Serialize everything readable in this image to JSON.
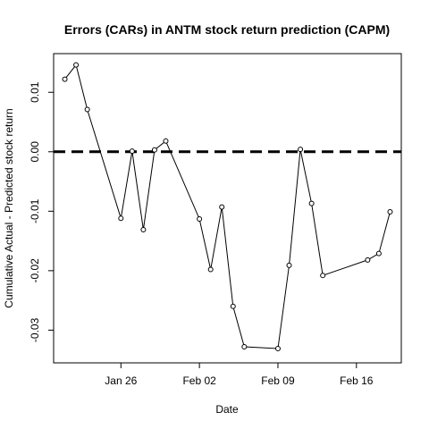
{
  "chart_data": {
    "type": "line",
    "title": "Errors (CARs) in ANTM stock return prediction (CAPM)",
    "xlabel": "Date",
    "ylabel": "Cumulative Actual - Predicted stock return",
    "x_ticks": [
      {
        "label": "Jan 26",
        "date": "2015-01-26"
      },
      {
        "label": "Feb 02",
        "date": "2015-02-02"
      },
      {
        "label": "Feb 09",
        "date": "2015-02-09"
      },
      {
        "label": "Feb 16",
        "date": "2015-02-16"
      }
    ],
    "y_ticks": [
      {
        "label": "-0.03",
        "value": -0.03
      },
      {
        "label": "-0.02",
        "value": -0.02
      },
      {
        "label": "-0.01",
        "value": -0.01
      },
      {
        "label": "0.00",
        "value": 0.0
      },
      {
        "label": "0.01",
        "value": 0.01
      }
    ],
    "xlim": [
      "2015-01-20",
      "2015-02-20"
    ],
    "ylim": [
      -0.0355,
      0.0165
    ],
    "reference_line": {
      "y": 0.0,
      "style": "dashed"
    },
    "grid": false,
    "series": [
      {
        "x": [
          "2015-01-21",
          "2015-01-22",
          "2015-01-23",
          "2015-01-26",
          "2015-01-27",
          "2015-01-28",
          "2015-01-29",
          "2015-01-30",
          "2015-02-02",
          "2015-02-03",
          "2015-02-04",
          "2015-02-05",
          "2015-02-06",
          "2015-02-09",
          "2015-02-10",
          "2015-02-11",
          "2015-02-12",
          "2015-02-13",
          "2015-02-17",
          "2015-02-18",
          "2015-02-19"
        ],
        "y": [
          0.0122,
          0.0146,
          0.0071,
          -0.0112,
          0.0001,
          -0.0131,
          0.0003,
          0.0018,
          -0.0113,
          -0.0198,
          -0.0093,
          -0.026,
          -0.0328,
          -0.0331,
          -0.0191,
          0.0004,
          -0.0087,
          -0.0208,
          -0.0182,
          -0.0171,
          -0.0101
        ]
      }
    ]
  }
}
